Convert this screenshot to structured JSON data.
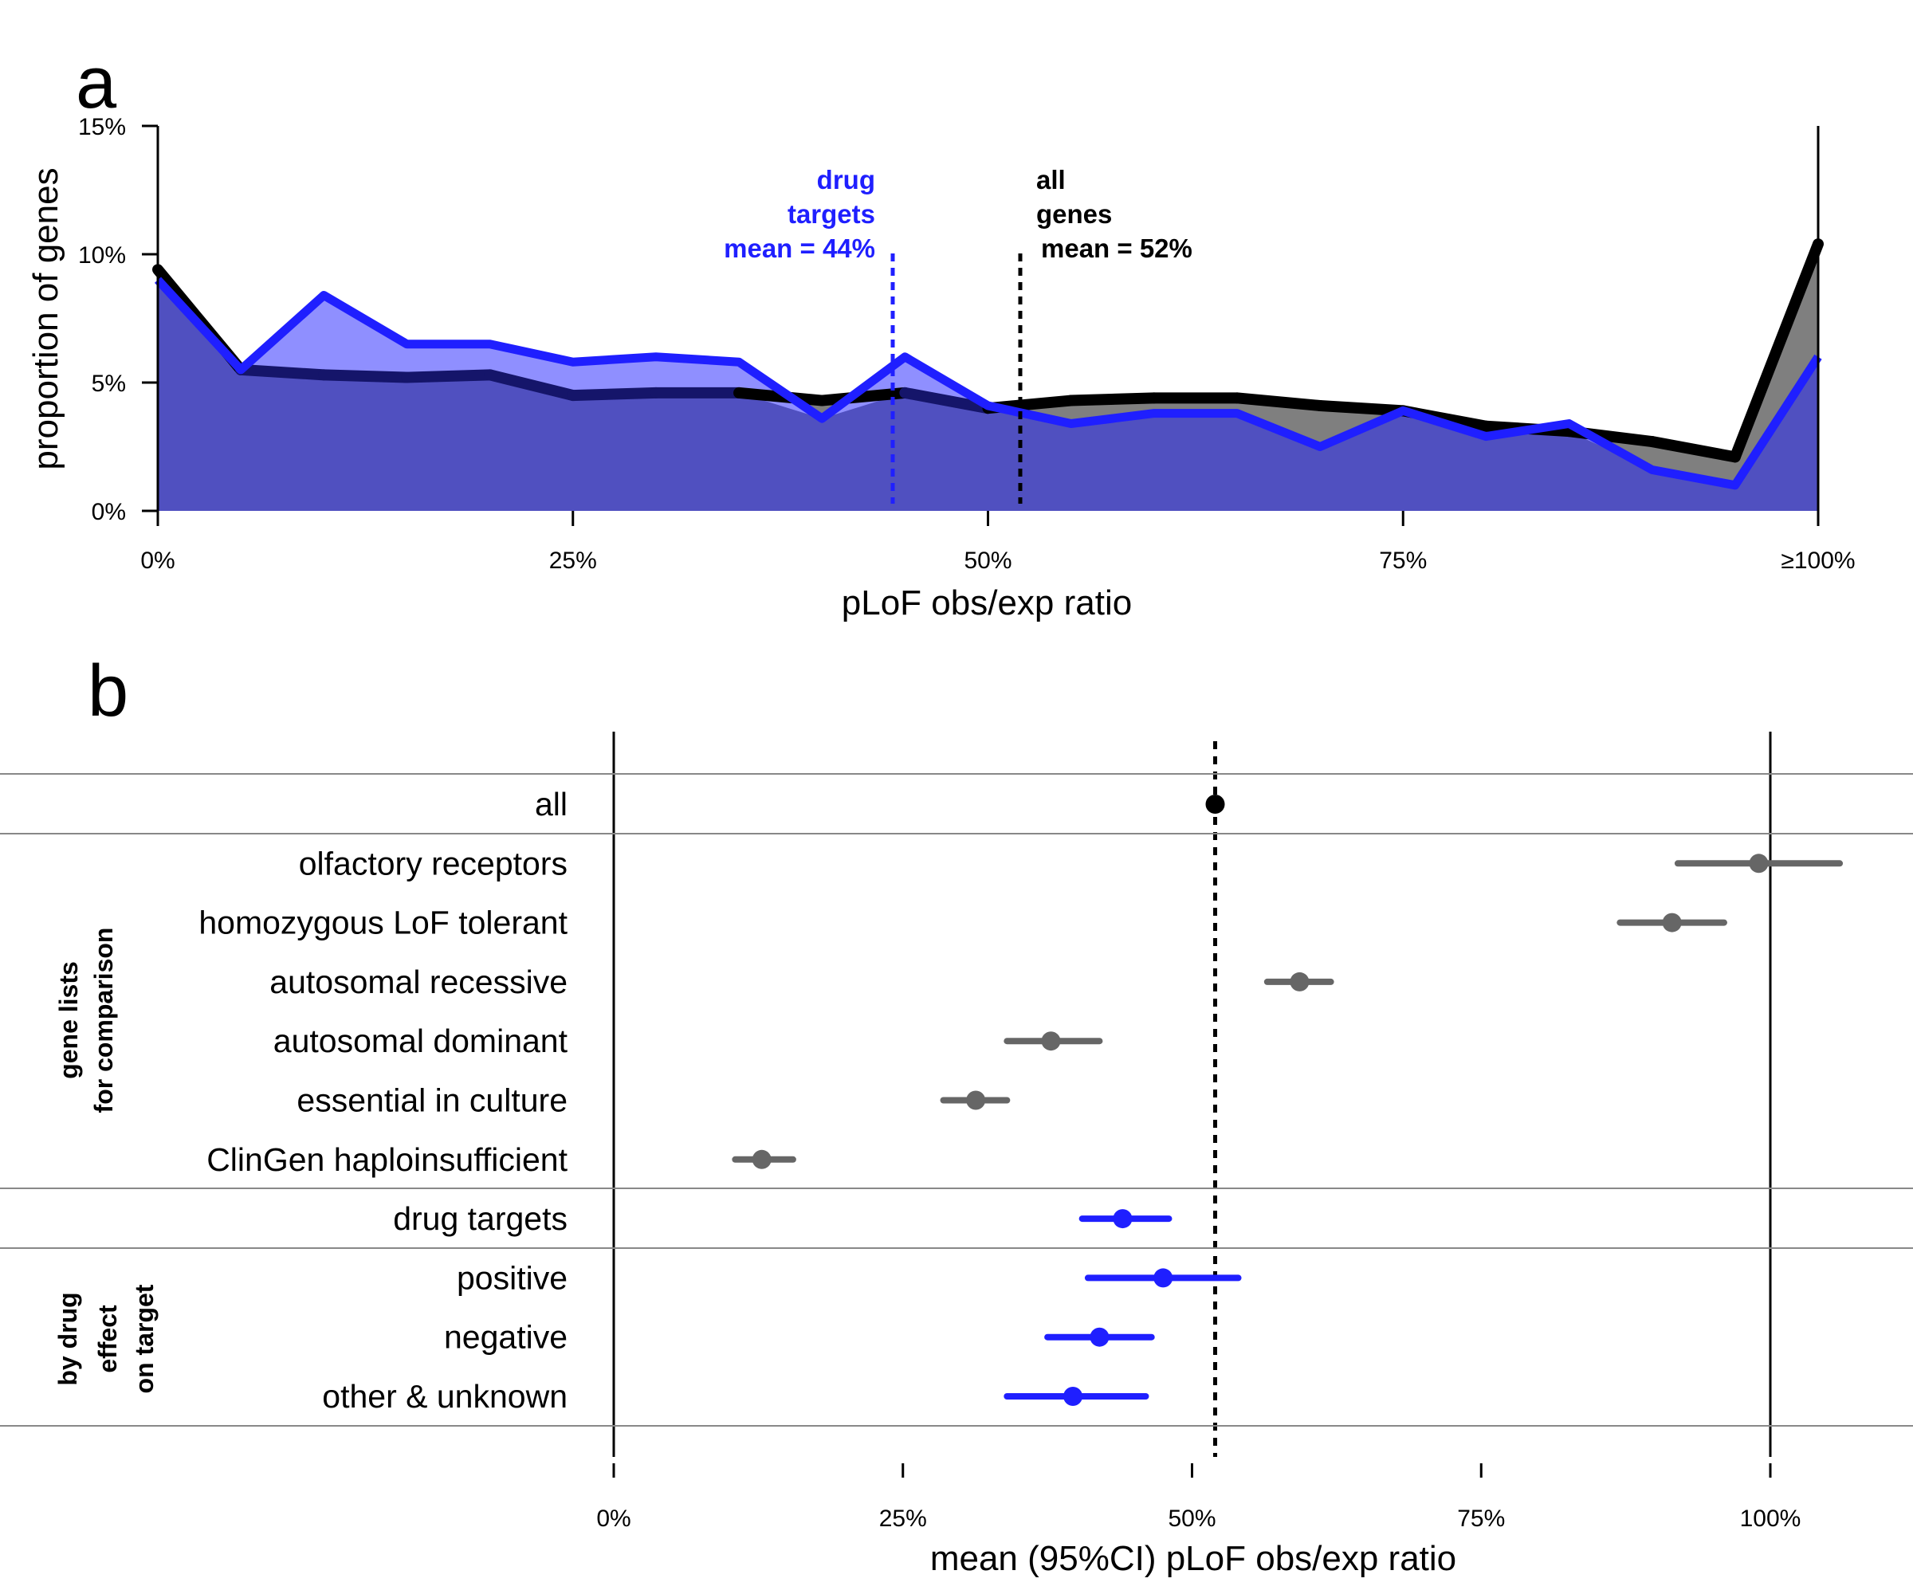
{
  "panel_a": {
    "letter": "a",
    "ylabel": "proportion of genes",
    "xlabel": "pLoF obs/exp ratio",
    "yticks": [
      "0%",
      "5%",
      "10%",
      "15%"
    ],
    "xticks": [
      "0%",
      "25%",
      "50%",
      "75%",
      "≥100%"
    ],
    "drug_targets_label": [
      "drug",
      "targets",
      "mean = 44%"
    ],
    "all_genes_label": [
      "all",
      "genes",
      "mean = 52%"
    ]
  },
  "panel_b": {
    "letter": "b",
    "xlabel": "mean (95%CI) pLoF obs/exp ratio",
    "xticks": [
      "0%",
      "25%",
      "50%",
      "75%",
      "100%"
    ],
    "group_label_1": [
      "gene lists",
      "for comparison"
    ],
    "group_label_2": [
      "by drug",
      "effect",
      "on target"
    ]
  },
  "colors": {
    "all_genes_line": "#000000",
    "all_genes_fill": "#7f7f7f",
    "drug_targets_line": "#1f1fff",
    "drug_targets_fill": "#8f8fff",
    "overlap_fill": "#5050c0",
    "overlap_dark": "#15156a",
    "comparison_points": "#666666",
    "all_point": "#000000"
  },
  "chart_data": [
    {
      "type": "area",
      "panel": "a",
      "ylabel": "proportion of genes",
      "xlabel": "pLoF obs/exp ratio",
      "xlim": [
        0,
        100
      ],
      "ylim": [
        0,
        15
      ],
      "x": [
        0,
        5,
        10,
        15,
        20,
        25,
        30,
        35,
        40,
        45,
        50,
        55,
        60,
        65,
        70,
        75,
        80,
        85,
        90,
        95,
        100
      ],
      "series": [
        {
          "name": "all genes",
          "mean": 52,
          "values": [
            9.4,
            5.5,
            5.3,
            5.2,
            5.3,
            4.5,
            4.6,
            4.6,
            4.3,
            4.6,
            4.0,
            4.3,
            4.4,
            4.4,
            4.1,
            3.9,
            3.3,
            3.1,
            2.7,
            2.1,
            10.4
          ]
        },
        {
          "name": "drug targets",
          "mean": 44,
          "values": [
            9.0,
            5.5,
            8.4,
            6.5,
            6.5,
            5.8,
            6.0,
            5.8,
            3.6,
            6.0,
            4.1,
            3.4,
            3.8,
            3.8,
            2.5,
            3.9,
            2.9,
            3.4,
            1.6,
            1.0,
            6.0
          ]
        }
      ]
    },
    {
      "type": "scatter",
      "panel": "b",
      "xlabel": "mean (95%CI) pLoF obs/exp ratio",
      "xlim": [
        0,
        100
      ],
      "reference_mean": 52,
      "rows": [
        {
          "label": "all",
          "mean": 52,
          "lower": 52,
          "upper": 52,
          "group": "all"
        },
        {
          "label": "olfactory receptors",
          "mean": 99,
          "lower": 92,
          "upper": 106,
          "group": "comparison"
        },
        {
          "label": "homozygous LoF tolerant",
          "mean": 91.5,
          "lower": 87,
          "upper": 96,
          "group": "comparison"
        },
        {
          "label": "autosomal recessive",
          "mean": 59.3,
          "lower": 56.5,
          "upper": 62,
          "group": "comparison"
        },
        {
          "label": "autosomal dominant",
          "mean": 37.8,
          "lower": 34,
          "upper": 42,
          "group": "comparison"
        },
        {
          "label": "essential in culture",
          "mean": 31.3,
          "lower": 28.5,
          "upper": 34,
          "group": "comparison"
        },
        {
          "label": "ClinGen haploinsufficient",
          "mean": 12.8,
          "lower": 10.5,
          "upper": 15.5,
          "group": "comparison"
        },
        {
          "label": "drug targets",
          "mean": 44,
          "lower": 40.5,
          "upper": 48,
          "group": "drug"
        },
        {
          "label": "positive",
          "mean": 47.5,
          "lower": 41,
          "upper": 54,
          "group": "drug"
        },
        {
          "label": "negative",
          "mean": 42,
          "lower": 37.5,
          "upper": 46.5,
          "group": "drug"
        },
        {
          "label": "other & unknown",
          "mean": 39.7,
          "lower": 34,
          "upper": 46,
          "group": "drug"
        }
      ]
    }
  ]
}
